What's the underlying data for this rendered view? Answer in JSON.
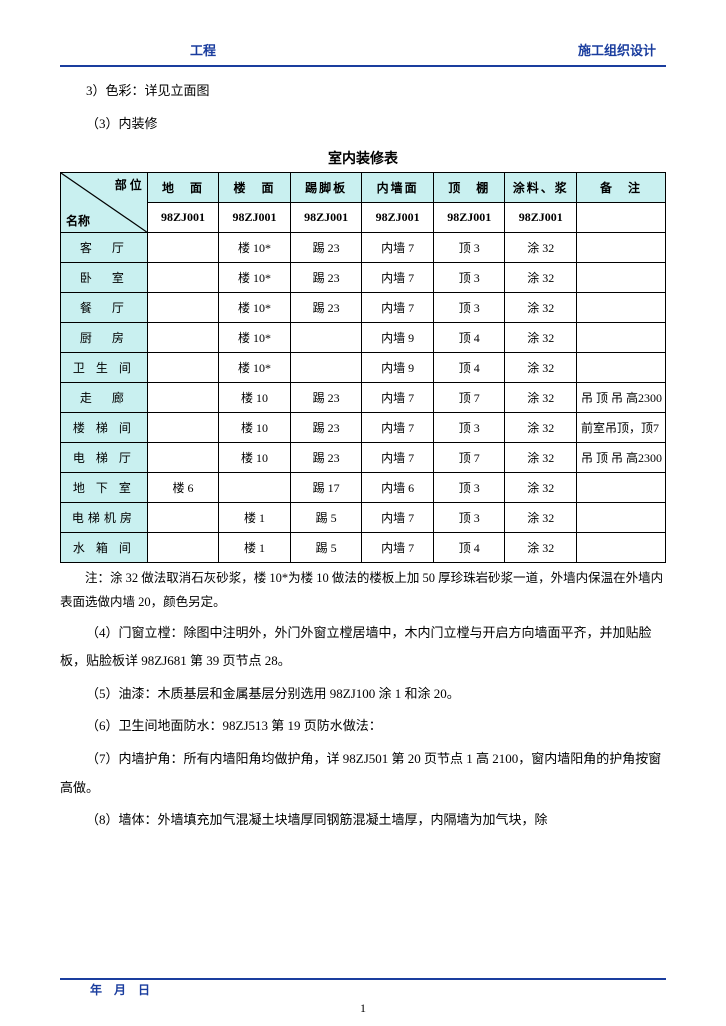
{
  "header": {
    "left": "工程",
    "right": "施工组织设计"
  },
  "pre_lines": [
    "3）色彩：详见立面图",
    "（3）内装修"
  ],
  "table": {
    "title": "室内装修表",
    "diag": {
      "top": "部 位",
      "bottom": "名称"
    },
    "columns": [
      "地　面",
      "楼　面",
      "踢脚板",
      "内墙面",
      "顶　棚",
      "涂料、浆",
      "备　注"
    ],
    "subhead": [
      "98ZJ001",
      "98ZJ001",
      "98ZJ001",
      "98ZJ001",
      "98ZJ001",
      "98ZJ001",
      ""
    ],
    "col_widths": [
      "80",
      "66",
      "66",
      "66",
      "66",
      "66",
      "66",
      "82"
    ],
    "header_bg": "#c9f0f0",
    "border_color": "#000000",
    "rows": [
      {
        "label": "客　厅",
        "cells": [
          "",
          "楼 10*",
          "踢 23",
          "内墙 7",
          "顶 3",
          "涂 32",
          ""
        ]
      },
      {
        "label": "卧　室",
        "cells": [
          "",
          "楼 10*",
          "踢 23",
          "内墙 7",
          "顶 3",
          "涂 32",
          ""
        ]
      },
      {
        "label": "餐　厅",
        "cells": [
          "",
          "楼 10*",
          "踢 23",
          "内墙 7",
          "顶 3",
          "涂 32",
          ""
        ]
      },
      {
        "label": "厨　房",
        "cells": [
          "",
          "楼 10*",
          "",
          "内墙 9",
          "顶 4",
          "涂 32",
          ""
        ]
      },
      {
        "label": "卫 生 间",
        "cells": [
          "",
          "楼 10*",
          "",
          "内墙 9",
          "顶 4",
          "涂 32",
          ""
        ]
      },
      {
        "label": "走　廊",
        "cells": [
          "",
          "楼 10",
          "踢 23",
          "内墙 7",
          "顶 7",
          "涂 32",
          "吊 顶 吊 高2300"
        ]
      },
      {
        "label": "楼 梯 间",
        "cells": [
          "",
          "楼 10",
          "踢 23",
          "内墙 7",
          "顶 3",
          "涂 32",
          "前室吊顶，顶7"
        ]
      },
      {
        "label": "电 梯 厅",
        "cells": [
          "",
          "楼 10",
          "踢 23",
          "内墙 7",
          "顶 7",
          "涂 32",
          "吊 顶 吊 高2300"
        ]
      },
      {
        "label": "地 下 室",
        "cells": [
          "楼 6",
          "",
          "踢 17",
          "内墙 6",
          "顶 3",
          "涂 32",
          ""
        ]
      },
      {
        "label": "电梯机房",
        "cells": [
          "",
          "楼 1",
          "踢 5",
          "内墙 7",
          "顶 3",
          "涂 32",
          ""
        ]
      },
      {
        "label": "水 箱 间",
        "cells": [
          "",
          "楼 1",
          "踢 5",
          "内墙 7",
          "顶 4",
          "涂 32",
          ""
        ]
      }
    ],
    "col_align": [
      "center",
      "center",
      "center",
      "center",
      "center",
      "center",
      "center",
      "left"
    ]
  },
  "note": "注：涂 32 做法取消石灰砂浆，楼 10*为楼 10 做法的楼板上加 50 厚珍珠岩砂浆一道，外墙内保温在外墙内表面选做内墙 20，颜色另定。",
  "post_paras": [
    "（4）门窗立樘：除图中注明外，外门外窗立樘居墙中，木内门立樘与开启方向墙面平齐，并加贴脸板，贴脸板详 98ZJ681 第 39 页节点 28。",
    "（5）油漆：木质基层和金属基层分别选用 98ZJ100 涂 1 和涂 20。",
    "（6）卫生间地面防水：98ZJ513 第 19 页防水做法：",
    "（7）内墙护角：所有内墙阳角均做护角，详 98ZJ501 第 20 页节点 1 高 2100，窗内墙阳角的护角按窗高做。",
    "（8）墙体：外墙填充加气混凝土块墙厚同钢筋混凝土墙厚，内隔墙为加气块，除"
  ],
  "footer": {
    "date": "年　月　日",
    "page_num": "1"
  }
}
